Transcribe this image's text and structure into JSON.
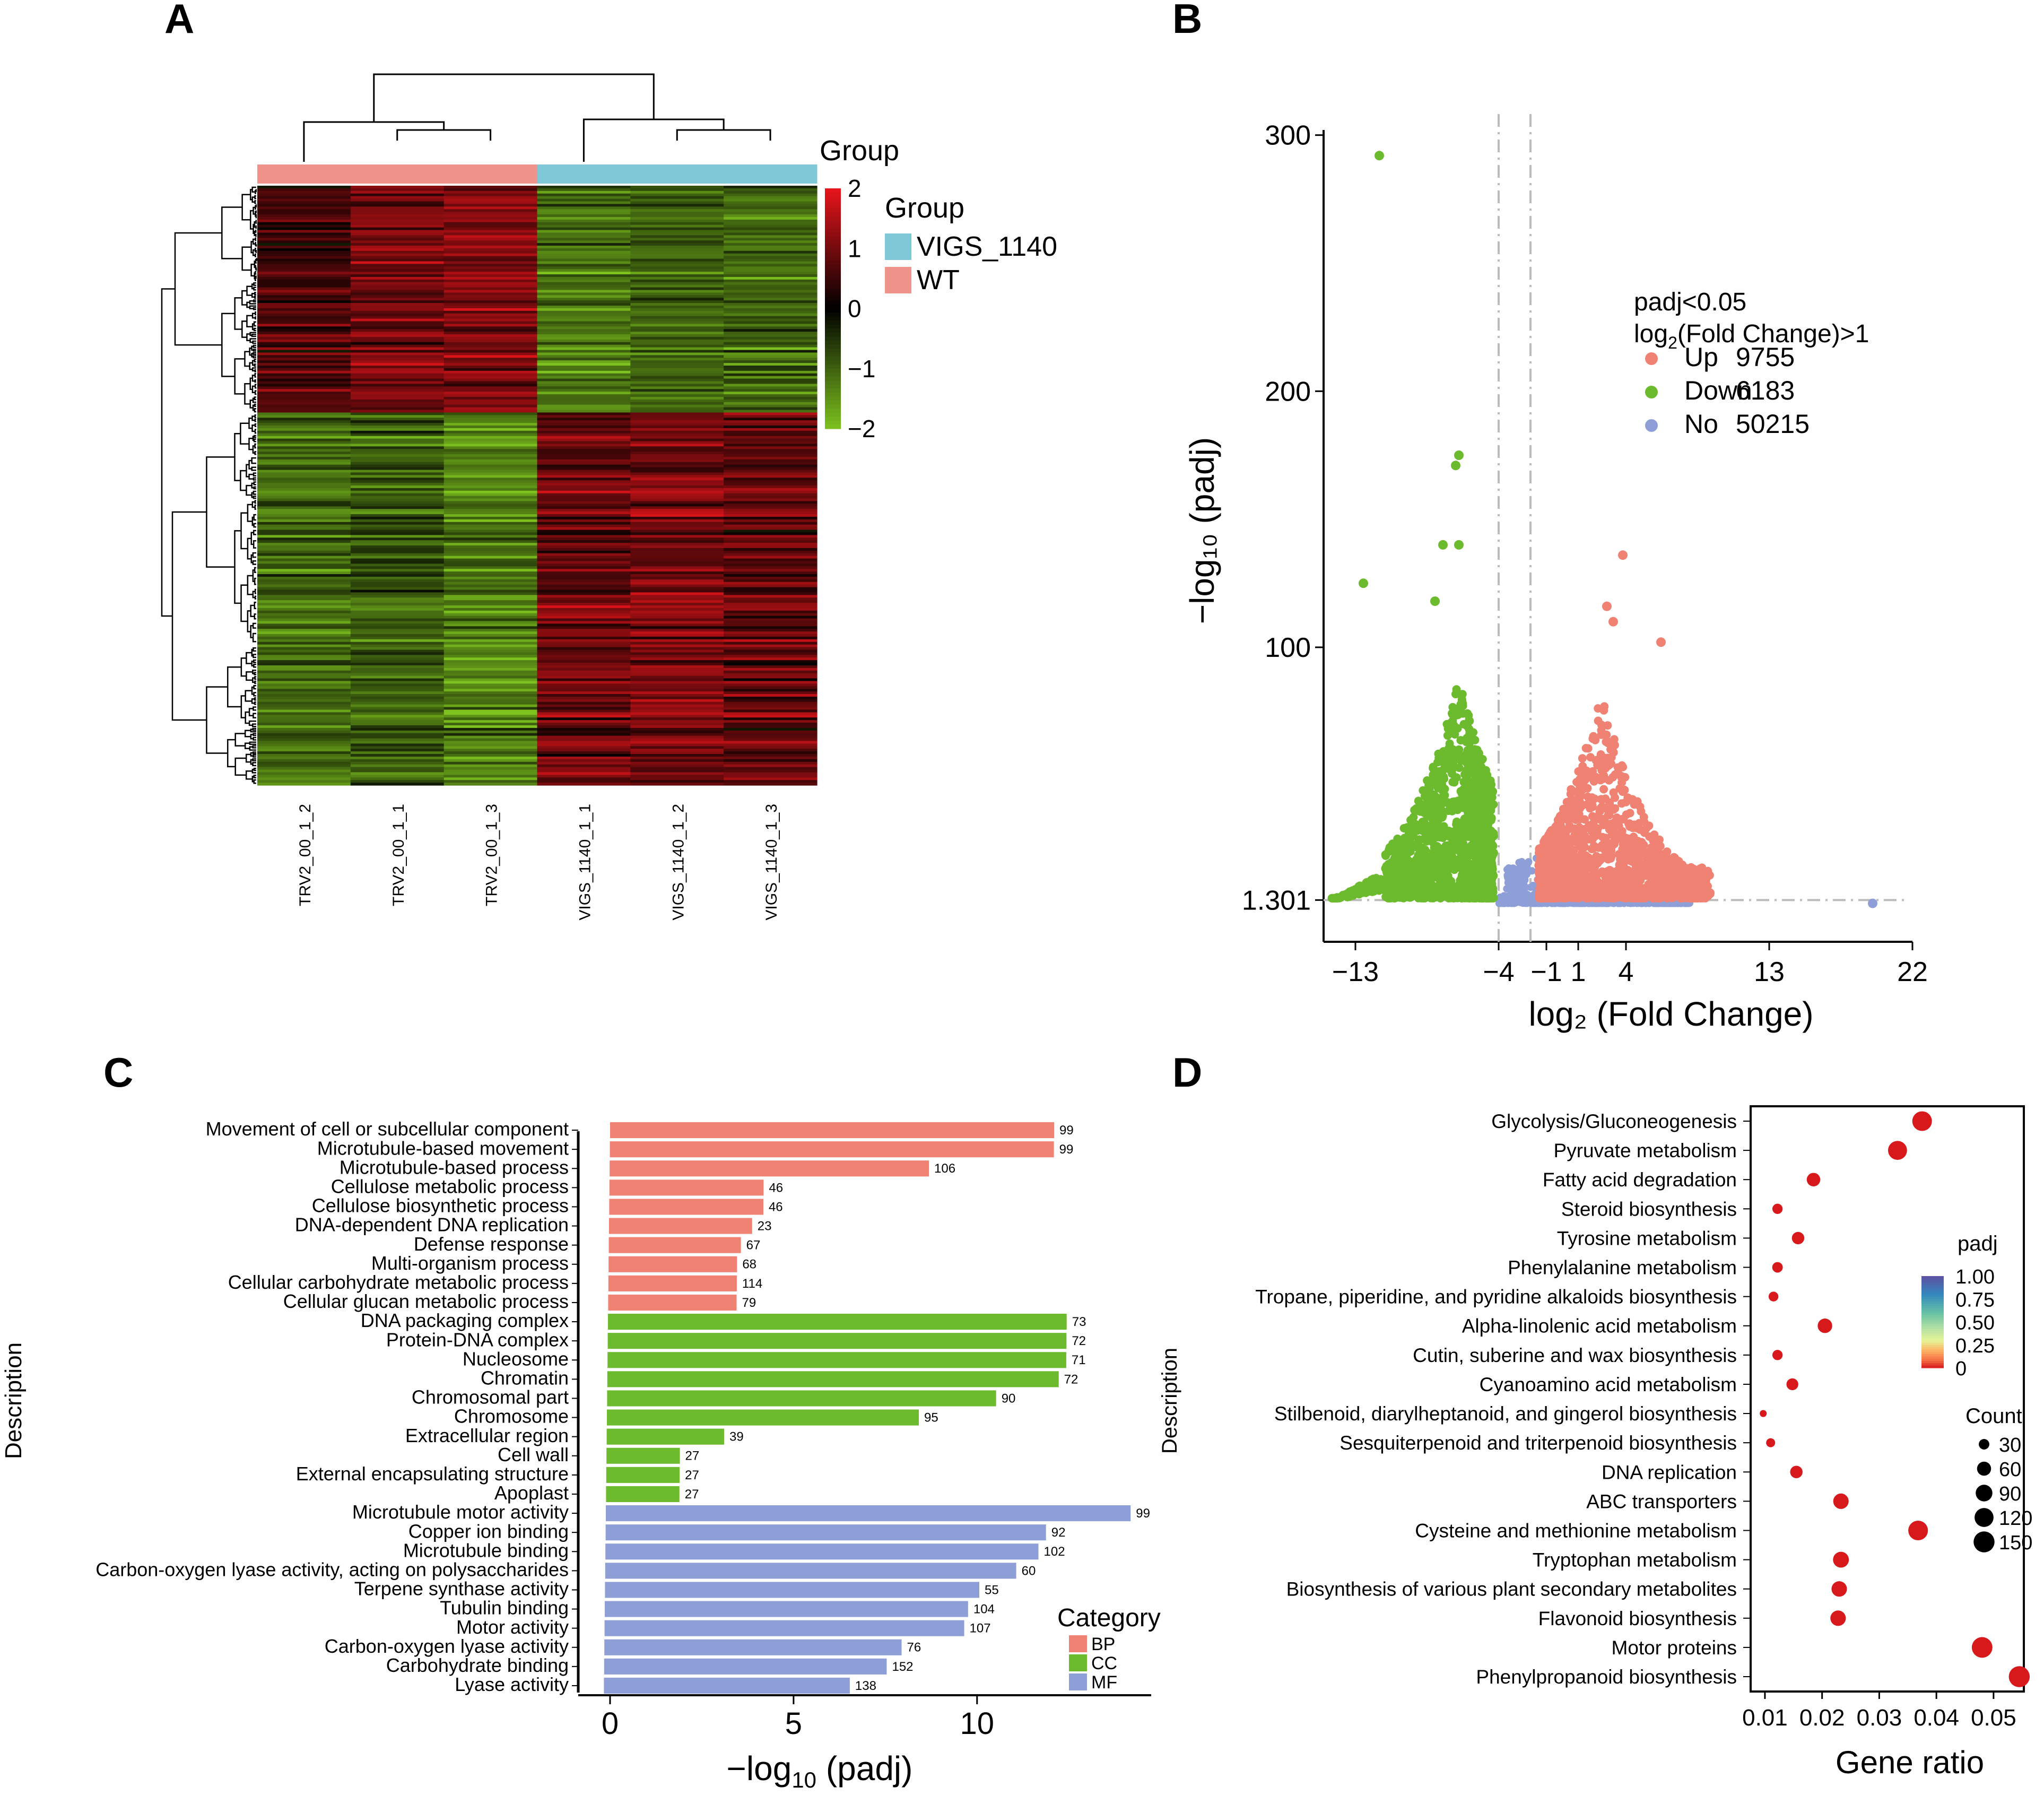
{
  "chart_data": [
    {
      "panel": "A",
      "type": "heatmap",
      "columns": [
        "TRV2_00_1_2",
        "TRV2_00_1_1",
        "TRV2_00_1_3",
        "VIGS_1140_1_1",
        "VIGS_1140_1_2",
        "VIGS_1140_1_3"
      ],
      "column_groups": [
        "WT",
        "WT",
        "WT",
        "VIGS_1140",
        "VIGS_1140",
        "VIGS_1140"
      ],
      "group_title_top": "Group",
      "legend_title": "Group",
      "legend": [
        {
          "name": "VIGS_1140",
          "color": "#7ec8d8"
        },
        {
          "name": "WT",
          "color": "#f0938a"
        }
      ],
      "colorbar_ticks": [
        "2",
        "1",
        "0",
        "−1",
        "−2"
      ],
      "colorbar_values": [
        2,
        1,
        0,
        -1,
        -2
      ],
      "color_scale": {
        "low": "#7dc21e",
        "mid": "#000000",
        "high": "#e8151b",
        "min": -2,
        "max": 2
      },
      "row_blocks": [
        {
          "rows": 0.38,
          "values": [
            0.6,
            1.0,
            1.1,
            -1.3,
            -1.0,
            -1.1
          ]
        },
        {
          "rows": 0.62,
          "values": [
            -1.1,
            -0.9,
            -1.3,
            0.9,
            1.0,
            0.8
          ]
        }
      ]
    },
    {
      "panel": "B",
      "type": "scatter",
      "xlabel": "log₂ (Fold Change)",
      "ylabel": "−log₁₀ (padj)",
      "x_ticks": [
        "−13",
        "−4",
        "−1",
        "1",
        "4",
        "13",
        "22"
      ],
      "x_tick_values": [
        -13,
        -4,
        -1,
        1,
        4,
        13,
        22
      ],
      "y_ticks": [
        "1.301",
        "100",
        "200",
        "300"
      ],
      "y_tick_values": [
        1.301,
        100,
        200,
        300
      ],
      "xlim": [
        -15,
        22
      ],
      "ylim": [
        -15,
        302
      ],
      "thresholds": {
        "x": [
          -4,
          -2
        ],
        "y": 1.301
      },
      "legend_title_line1": "padj<0.05",
      "legend_title_line2_pre": "log",
      "legend_title_line2_sub": "2",
      "legend_title_line2_post": "(Fold Change)>1",
      "legend": [
        {
          "name": "Up",
          "count": "9755",
          "color": "#f08274"
        },
        {
          "name": "Down",
          "count": "6183",
          "color": "#6cba2d"
        },
        {
          "name": "No",
          "count": "50215",
          "color": "#8e9fd8"
        }
      ],
      "notable_points": [
        {
          "x": -11.5,
          "y": 292,
          "group": "Down"
        },
        {
          "x": -6.5,
          "y": 175,
          "group": "Down"
        },
        {
          "x": -6.7,
          "y": 171,
          "group": "Down"
        },
        {
          "x": -7.5,
          "y": 140,
          "group": "Down"
        },
        {
          "x": -6.5,
          "y": 140,
          "group": "Down"
        },
        {
          "x": -12.5,
          "y": 125,
          "group": "Down"
        },
        {
          "x": -8,
          "y": 118,
          "group": "Down"
        },
        {
          "x": 3.8,
          "y": 136,
          "group": "Up"
        },
        {
          "x": 2.8,
          "y": 116,
          "group": "Up"
        },
        {
          "x": 3.2,
          "y": 110,
          "group": "Up"
        },
        {
          "x": 6.2,
          "y": 102,
          "group": "Up"
        },
        {
          "x": 19.5,
          "y": 0,
          "group": "No"
        }
      ]
    },
    {
      "panel": "C",
      "type": "bar",
      "orientation": "horizontal",
      "xlabel_pre": "−log",
      "xlabel_sub": "10",
      "xlabel_post": " (padj)",
      "ylabel": "Description",
      "x_ticks": [
        "0",
        "5",
        "10"
      ],
      "x_tick_values": [
        0,
        5,
        10
      ],
      "xlim": [
        0,
        14.6
      ],
      "legend_title": "Category",
      "legend": [
        {
          "name": "BP",
          "color": "#f08274"
        },
        {
          "name": "CC",
          "color": "#6cba2d"
        },
        {
          "name": "MF",
          "color": "#8e9fd8"
        }
      ],
      "bars": [
        {
          "label": "Movement of cell or subcellular component",
          "value": 12.1,
          "count": "99",
          "category": "BP"
        },
        {
          "label": "Microtubule-based movement",
          "value": 12.1,
          "count": "99",
          "category": "BP"
        },
        {
          "label": "Microtubule-based process",
          "value": 8.7,
          "count": "106",
          "category": "BP"
        },
        {
          "label": "Cellulose metabolic process",
          "value": 4.2,
          "count": "46",
          "category": "BP"
        },
        {
          "label": "Cellulose biosynthetic process",
          "value": 4.2,
          "count": "46",
          "category": "BP"
        },
        {
          "label": "DNA-dependent DNA replication",
          "value": 3.9,
          "count": "23",
          "category": "BP"
        },
        {
          "label": "Defense response",
          "value": 3.6,
          "count": "67",
          "category": "BP"
        },
        {
          "label": "Multi-organism process",
          "value": 3.5,
          "count": "68",
          "category": "BP"
        },
        {
          "label": "Cellular carbohydrate metabolic process",
          "value": 3.5,
          "count": "114",
          "category": "BP"
        },
        {
          "label": "Cellular glucan metabolic process",
          "value": 3.5,
          "count": "79",
          "category": "BP"
        },
        {
          "label": "DNA packaging complex",
          "value": 12.5,
          "count": "73",
          "category": "CC"
        },
        {
          "label": "Protein-DNA complex",
          "value": 12.5,
          "count": "72",
          "category": "CC"
        },
        {
          "label": "Nucleosome",
          "value": 12.5,
          "count": "71",
          "category": "CC"
        },
        {
          "label": "Chromatin",
          "value": 12.3,
          "count": "72",
          "category": "CC"
        },
        {
          "label": "Chromosomal part",
          "value": 10.6,
          "count": "90",
          "category": "CC"
        },
        {
          "label": "Chromosome",
          "value": 8.5,
          "count": "95",
          "category": "CC"
        },
        {
          "label": "Extracellular region",
          "value": 3.2,
          "count": "39",
          "category": "CC"
        },
        {
          "label": "Cell wall",
          "value": 2.0,
          "count": "27",
          "category": "CC"
        },
        {
          "label": "External encapsulating structure",
          "value": 2.0,
          "count": "27",
          "category": "CC"
        },
        {
          "label": "Apoplast",
          "value": 2.0,
          "count": "27",
          "category": "CC"
        },
        {
          "label": "Microtubule motor activity",
          "value": 14.3,
          "count": "99",
          "category": "MF"
        },
        {
          "label": "Copper ion binding",
          "value": 12.0,
          "count": "92",
          "category": "MF"
        },
        {
          "label": "Microtubule binding",
          "value": 11.8,
          "count": "102",
          "category": "MF"
        },
        {
          "label": "Carbon-oxygen lyase activity, acting on polysaccharides",
          "value": 11.2,
          "count": "60",
          "category": "MF"
        },
        {
          "label": "Terpene synthase activity",
          "value": 10.2,
          "count": "55",
          "category": "MF"
        },
        {
          "label": "Tubulin binding",
          "value": 9.9,
          "count": "104",
          "category": "MF"
        },
        {
          "label": "Motor activity",
          "value": 9.8,
          "count": "107",
          "category": "MF"
        },
        {
          "label": "Carbon-oxygen lyase activity",
          "value": 8.1,
          "count": "76",
          "category": "MF"
        },
        {
          "label": "Carbohydrate binding",
          "value": 7.7,
          "count": "152",
          "category": "MF"
        },
        {
          "label": "Lyase activity",
          "value": 6.7,
          "count": "138",
          "category": "MF"
        }
      ]
    },
    {
      "panel": "D",
      "type": "scatter",
      "subtype": "bubble",
      "xlabel": "Gene ratio",
      "ylabel": "Description",
      "x_ticks": [
        "0.01",
        "0.02",
        "0.03",
        "0.04",
        "0.05"
      ],
      "x_tick_values": [
        0.01,
        0.02,
        0.03,
        0.04,
        0.05
      ],
      "xlim": [
        0.0075,
        0.0553
      ],
      "color_legend_title": "padj",
      "color_legend_ticks": [
        "1.00",
        "0.75",
        "0.50",
        "0.25",
        "0"
      ],
      "color_legend_values": [
        1.0,
        0.75,
        0.5,
        0.25,
        0
      ],
      "size_legend_title": "Count",
      "size_legend": [
        {
          "label": "30",
          "count": 30
        },
        {
          "label": "60",
          "count": 60
        },
        {
          "label": "90",
          "count": 90
        },
        {
          "label": "120",
          "count": 120
        },
        {
          "label": "150",
          "count": 150
        }
      ],
      "point_color": "#d7191c",
      "points": [
        {
          "label": "Glycolysis/Gluconeogenesis",
          "x": 0.0375,
          "count": 130
        },
        {
          "label": "Pyruvate metabolism",
          "x": 0.0332,
          "count": 120
        },
        {
          "label": "Fatty acid degradation",
          "x": 0.0185,
          "count": 55
        },
        {
          "label": "Steroid biosynthesis",
          "x": 0.0122,
          "count": 28
        },
        {
          "label": "Tyrosine metabolism",
          "x": 0.0158,
          "count": 45
        },
        {
          "label": "Phenylalanine metabolism",
          "x": 0.0122,
          "count": 30
        },
        {
          "label": "Tropane, piperidine, and pyridine alkaloids biosynthesis",
          "x": 0.0115,
          "count": 25
        },
        {
          "label": "Alpha-linolenic acid metabolism",
          "x": 0.0205,
          "count": 65
        },
        {
          "label": "Cutin, suberine and wax biosynthesis",
          "x": 0.0122,
          "count": 28
        },
        {
          "label": "Cyanoamino acid metabolism",
          "x": 0.0148,
          "count": 40
        },
        {
          "label": "Stilbenoid, diarylheptanoid, and gingerol biosynthesis",
          "x": 0.0097,
          "count": 10
        },
        {
          "label": "Sesquiterpenoid and triterpenoid biosynthesis",
          "x": 0.011,
          "count": 20
        },
        {
          "label": "DNA replication",
          "x": 0.0155,
          "count": 45
        },
        {
          "label": "ABC transporters",
          "x": 0.0233,
          "count": 75
        },
        {
          "label": "Cysteine and methionine metabolism",
          "x": 0.0368,
          "count": 130
        },
        {
          "label": "Tryptophan metabolism",
          "x": 0.0233,
          "count": 80
        },
        {
          "label": "Biosynthesis of various plant secondary metabolites",
          "x": 0.023,
          "count": 75
        },
        {
          "label": "Flavonoid biosynthesis",
          "x": 0.0228,
          "count": 75
        },
        {
          "label": "Motor proteins",
          "x": 0.048,
          "count": 145
        },
        {
          "label": "Phenylpropanoid biosynthesis",
          "x": 0.0545,
          "count": 150
        }
      ]
    }
  ],
  "panel_labels": [
    "A",
    "B",
    "C",
    "D"
  ]
}
